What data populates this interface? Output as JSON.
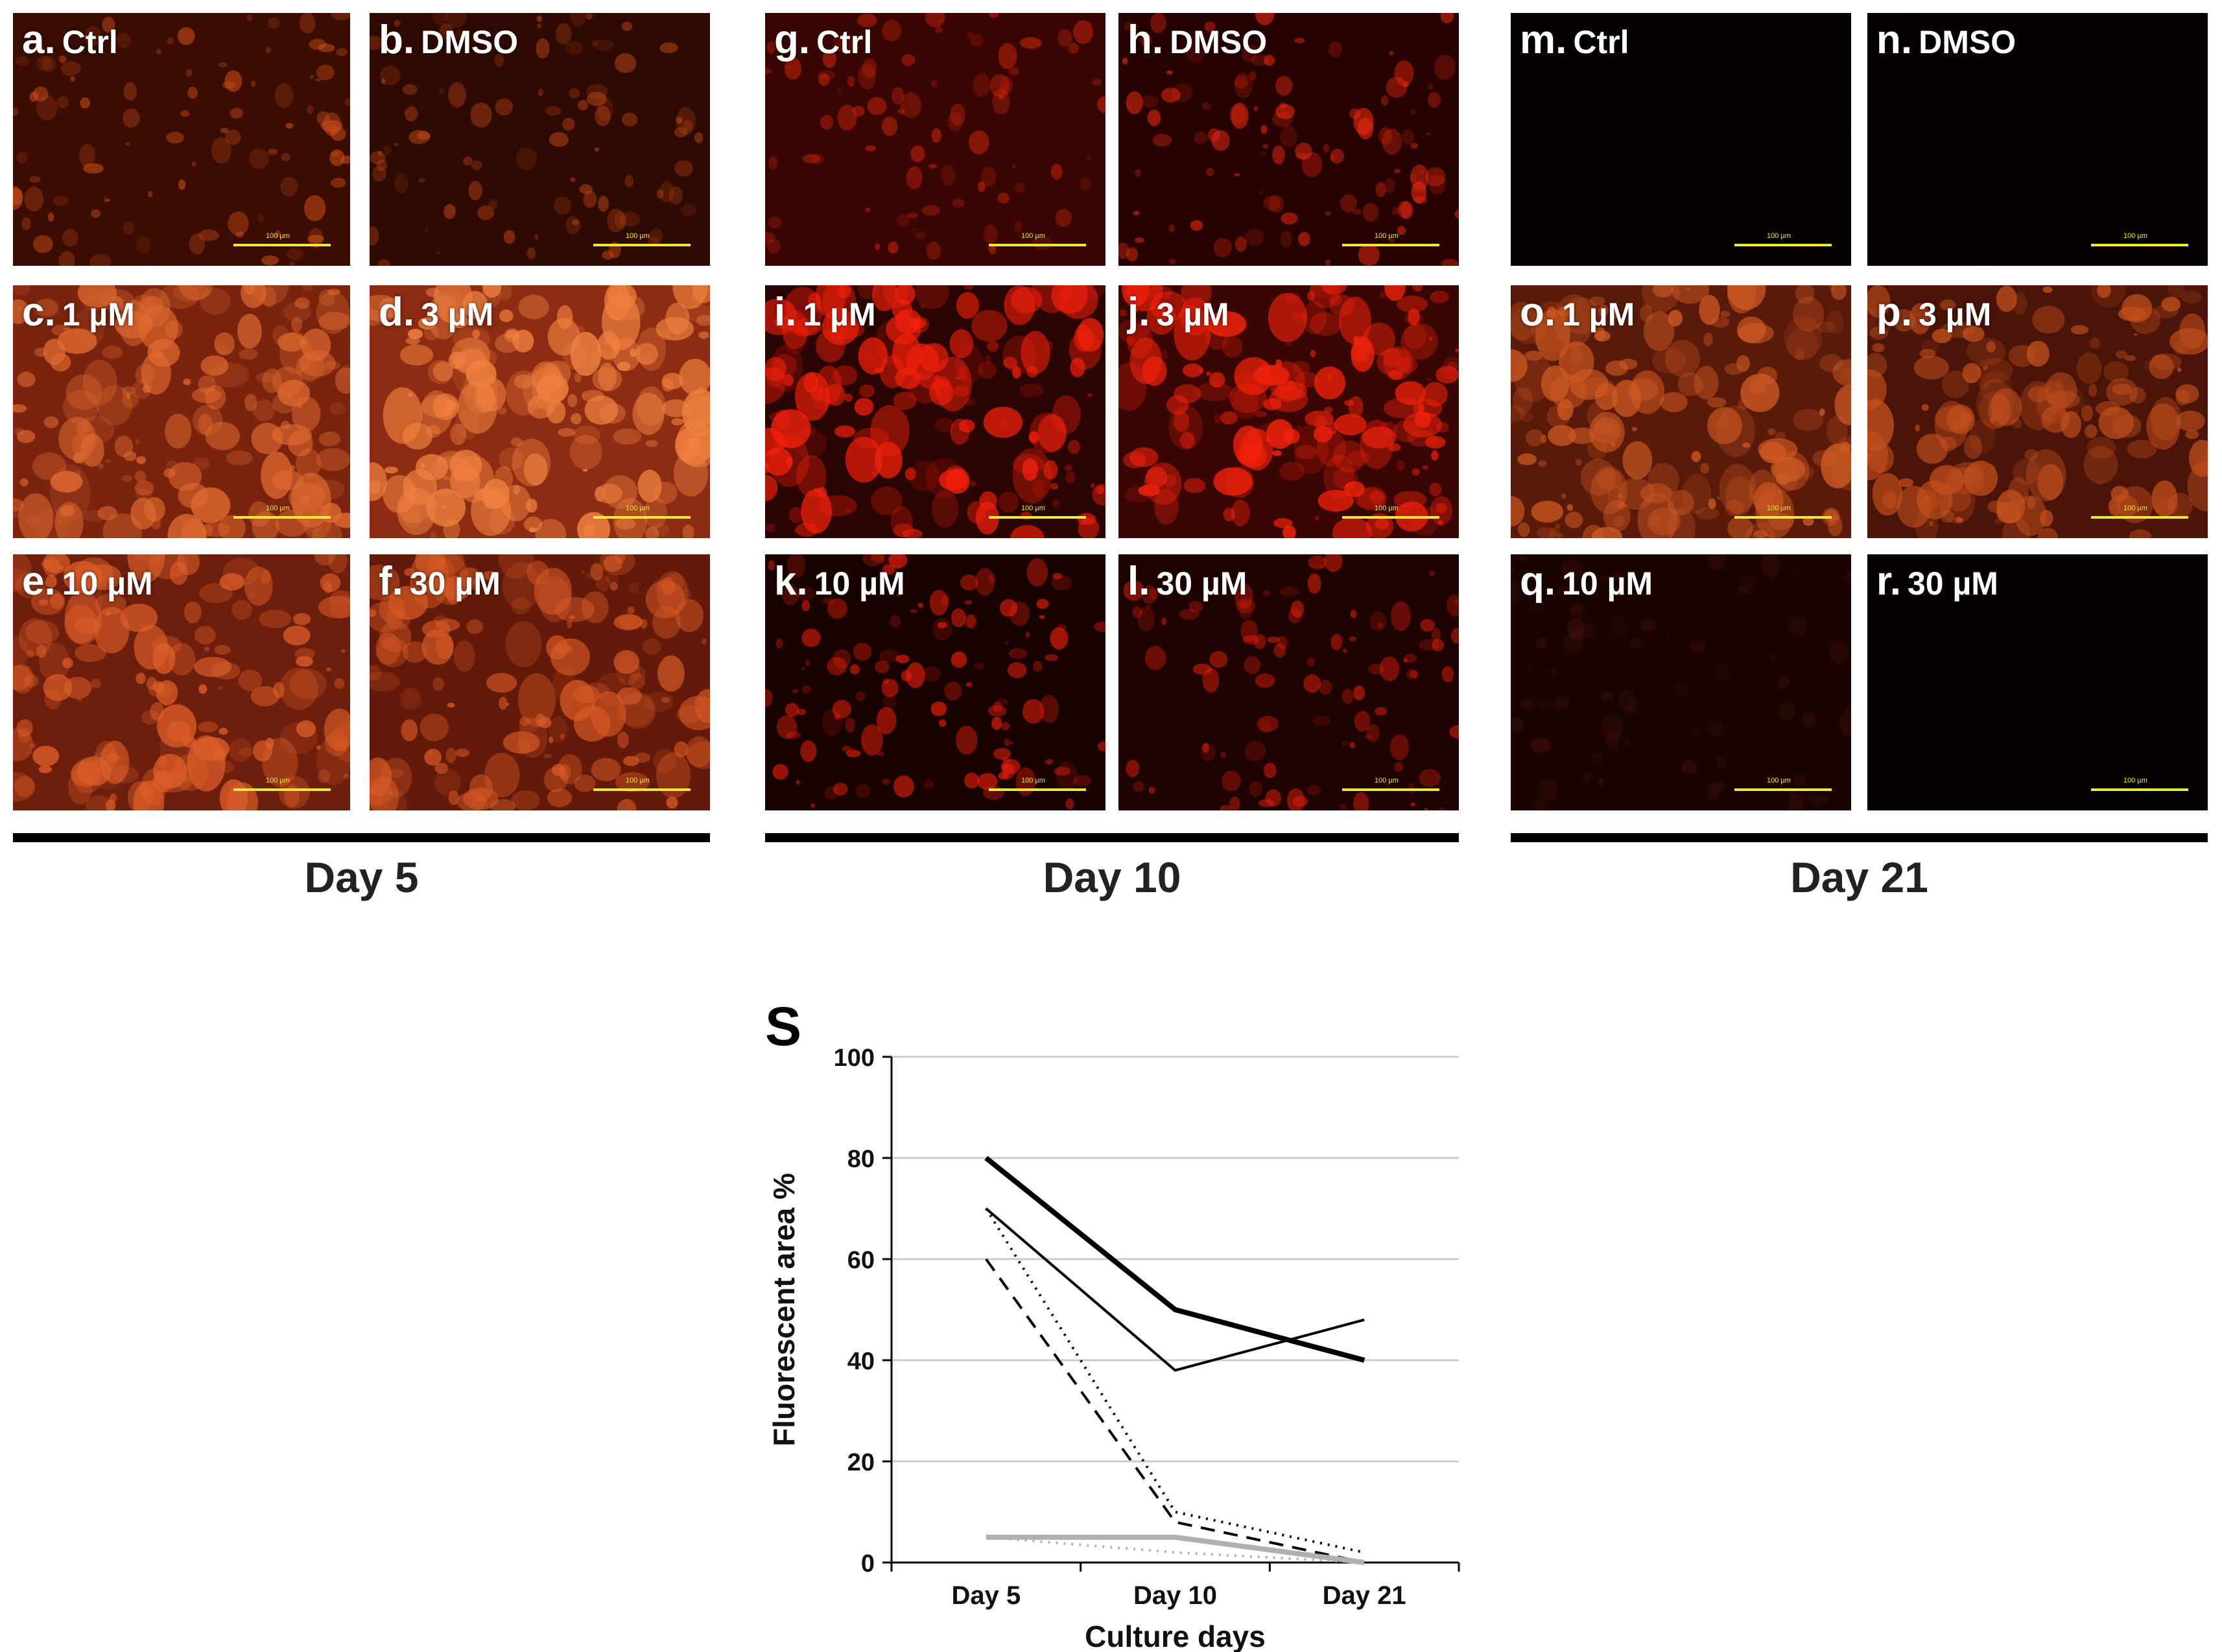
{
  "panels": [
    {
      "letter": "a.",
      "condition": "Ctrl",
      "scale": "100 µm",
      "tone": "#3a0c02",
      "spots": "#d2501a",
      "intensity": 0.35
    },
    {
      "letter": "b.",
      "condition": "DMSO",
      "scale": "100 µm",
      "tone": "#2e0a02",
      "spots": "#c84a18",
      "intensity": 0.3
    },
    {
      "letter": "c.",
      "condition": "1 µM",
      "scale": "100 µm",
      "tone": "#7a2410",
      "spots": "#e06a30",
      "intensity": 0.8
    },
    {
      "letter": "d.",
      "condition": "3 µM",
      "scale": "100 µm",
      "tone": "#8c2c12",
      "spots": "#f08040",
      "intensity": 0.85
    },
    {
      "letter": "e.",
      "condition": "10 µM",
      "scale": "100 µm",
      "tone": "#6e1e0c",
      "spots": "#e0602a",
      "intensity": 0.7
    },
    {
      "letter": "f.",
      "condition": "30 µM",
      "scale": "100 µm",
      "tone": "#641a0a",
      "spots": "#d85a26",
      "intensity": 0.7
    },
    {
      "letter": "g.",
      "condition": "Ctrl",
      "scale": "100 µm",
      "tone": "#3a0603",
      "spots": "#e02a10",
      "intensity": 0.25
    },
    {
      "letter": "h.",
      "condition": "DMSO",
      "scale": "100 µm",
      "tone": "#260302",
      "spots": "#f02a10",
      "intensity": 0.4
    },
    {
      "letter": "i.",
      "condition": "1 µM",
      "scale": "100 µm",
      "tone": "#2a0402",
      "spots": "#f2200c",
      "intensity": 0.75
    },
    {
      "letter": "j.",
      "condition": "3 µM",
      "scale": "100 µm",
      "tone": "#3a0603",
      "spots": "#f4220c",
      "intensity": 0.8
    },
    {
      "letter": "k.",
      "condition": "10 µM",
      "scale": "100 µm",
      "tone": "#180201",
      "spots": "#f0200c",
      "intensity": 0.5
    },
    {
      "letter": "l.",
      "condition": "30 µM",
      "scale": "100 µm",
      "tone": "#1e0302",
      "spots": "#e8200c",
      "intensity": 0.35
    },
    {
      "letter": "m.",
      "condition": "Ctrl",
      "scale": "100 µm",
      "tone": "#050101",
      "spots": "#100202",
      "intensity": 0.0
    },
    {
      "letter": "n.",
      "condition": "DMSO",
      "scale": "100 µm",
      "tone": "#050101",
      "spots": "#100202",
      "intensity": 0.0
    },
    {
      "letter": "o.",
      "condition": "1 µM",
      "scale": "100 µm",
      "tone": "#5a1a0a",
      "spots": "#d05a24",
      "intensity": 0.75
    },
    {
      "letter": "p.",
      "condition": "3 µM",
      "scale": "100 µm",
      "tone": "#4a1408",
      "spots": "#c4501e",
      "intensity": 0.7
    },
    {
      "letter": "q.",
      "condition": "10 µM",
      "scale": "100 µm",
      "tone": "#1a0402",
      "spots": "#40100a",
      "intensity": 0.2
    },
    {
      "letter": "r.",
      "condition": "30 µM",
      "scale": "100 µm",
      "tone": "#050101",
      "spots": "#0e0202",
      "intensity": 0.0
    }
  ],
  "days": [
    "Day 5",
    "Day 10",
    "Day 21"
  ],
  "chart_data": {
    "type": "line",
    "panel_letter": "S",
    "xlabel": "Culture days",
    "ylabel": "Fluorescent area %",
    "categories": [
      "Day 5",
      "Day 10",
      "Day 21"
    ],
    "ylim": [
      0,
      100
    ],
    "yticks": [
      0,
      20,
      40,
      60,
      80,
      100
    ],
    "grid": true,
    "legend": "none",
    "series": [
      {
        "values": [
          80,
          50,
          40
        ],
        "color": "#000000",
        "style": "solid-thick"
      },
      {
        "values": [
          70,
          38,
          48
        ],
        "color": "#000000",
        "style": "solid"
      },
      {
        "values": [
          70,
          10,
          2
        ],
        "color": "#000000",
        "style": "dotted"
      },
      {
        "values": [
          60,
          8,
          0
        ],
        "color": "#000000",
        "style": "dashed"
      },
      {
        "values": [
          5,
          5,
          0
        ],
        "color": "#b0b0b0",
        "style": "solid-thick"
      },
      {
        "values": [
          5,
          2,
          0
        ],
        "color": "#b0b0b0",
        "style": "dotted"
      }
    ]
  }
}
